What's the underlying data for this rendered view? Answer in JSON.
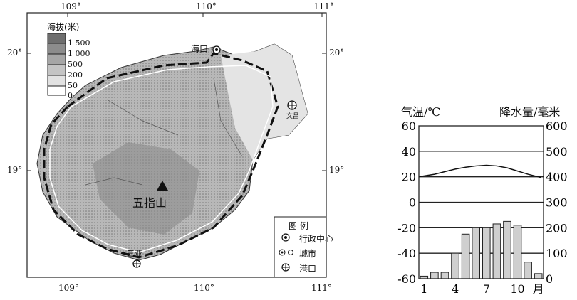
{
  "map": {
    "lon_labels_top": [
      "109°",
      "110°",
      "111°"
    ],
    "lon_labels_bottom": [
      "109°",
      "110°",
      "111°"
    ],
    "lat_labels": [
      "20°",
      "19°"
    ],
    "elevation_legend": {
      "title": "海拔(米)",
      "levels": [
        "1 500",
        "1 000",
        "500",
        "200",
        "50",
        "0"
      ],
      "colors": [
        "#6e6e6e",
        "#8c8c8c",
        "#a6a6a6",
        "#c4c4c4",
        "#e2e2e2",
        "#ffffff"
      ]
    },
    "places": {
      "haikou": "海口",
      "wenchang": "文昌",
      "sanya": "三亚",
      "wuzhishan": "五指山"
    },
    "legend": {
      "title": "图 例",
      "items": [
        {
          "icon": "admin-center-icon",
          "label": "行政中心"
        },
        {
          "icon": "city-icon",
          "label": "城市"
        },
        {
          "icon": "port-icon",
          "label": "港口"
        }
      ]
    }
  },
  "chart_data": {
    "type": "bar+line",
    "left_axis_label": "气温/℃",
    "right_axis_label": "降水量/毫米",
    "x_unit": "月",
    "x_tick_labels": [
      "1",
      "4",
      "7",
      "10"
    ],
    "months": [
      1,
      2,
      3,
      4,
      5,
      6,
      7,
      8,
      9,
      10,
      11,
      12
    ],
    "temperature_c": [
      20,
      22,
      24,
      26,
      27.5,
      28.5,
      29,
      28.5,
      27,
      24.5,
      22,
      19.5
    ],
    "precipitation_mm": [
      10,
      25,
      25,
      100,
      175,
      200,
      200,
      215,
      225,
      210,
      65,
      20
    ],
    "left_ylim": [
      -60,
      60
    ],
    "left_ticks": [
      "60",
      "40",
      "20",
      "0",
      "-20",
      "-40",
      "-60"
    ],
    "right_ylim": [
      0,
      600
    ],
    "right_ticks": [
      "600",
      "500",
      "400",
      "300",
      "200",
      "100",
      "0"
    ],
    "grid": true,
    "bar_color": "#cfcfcf"
  }
}
